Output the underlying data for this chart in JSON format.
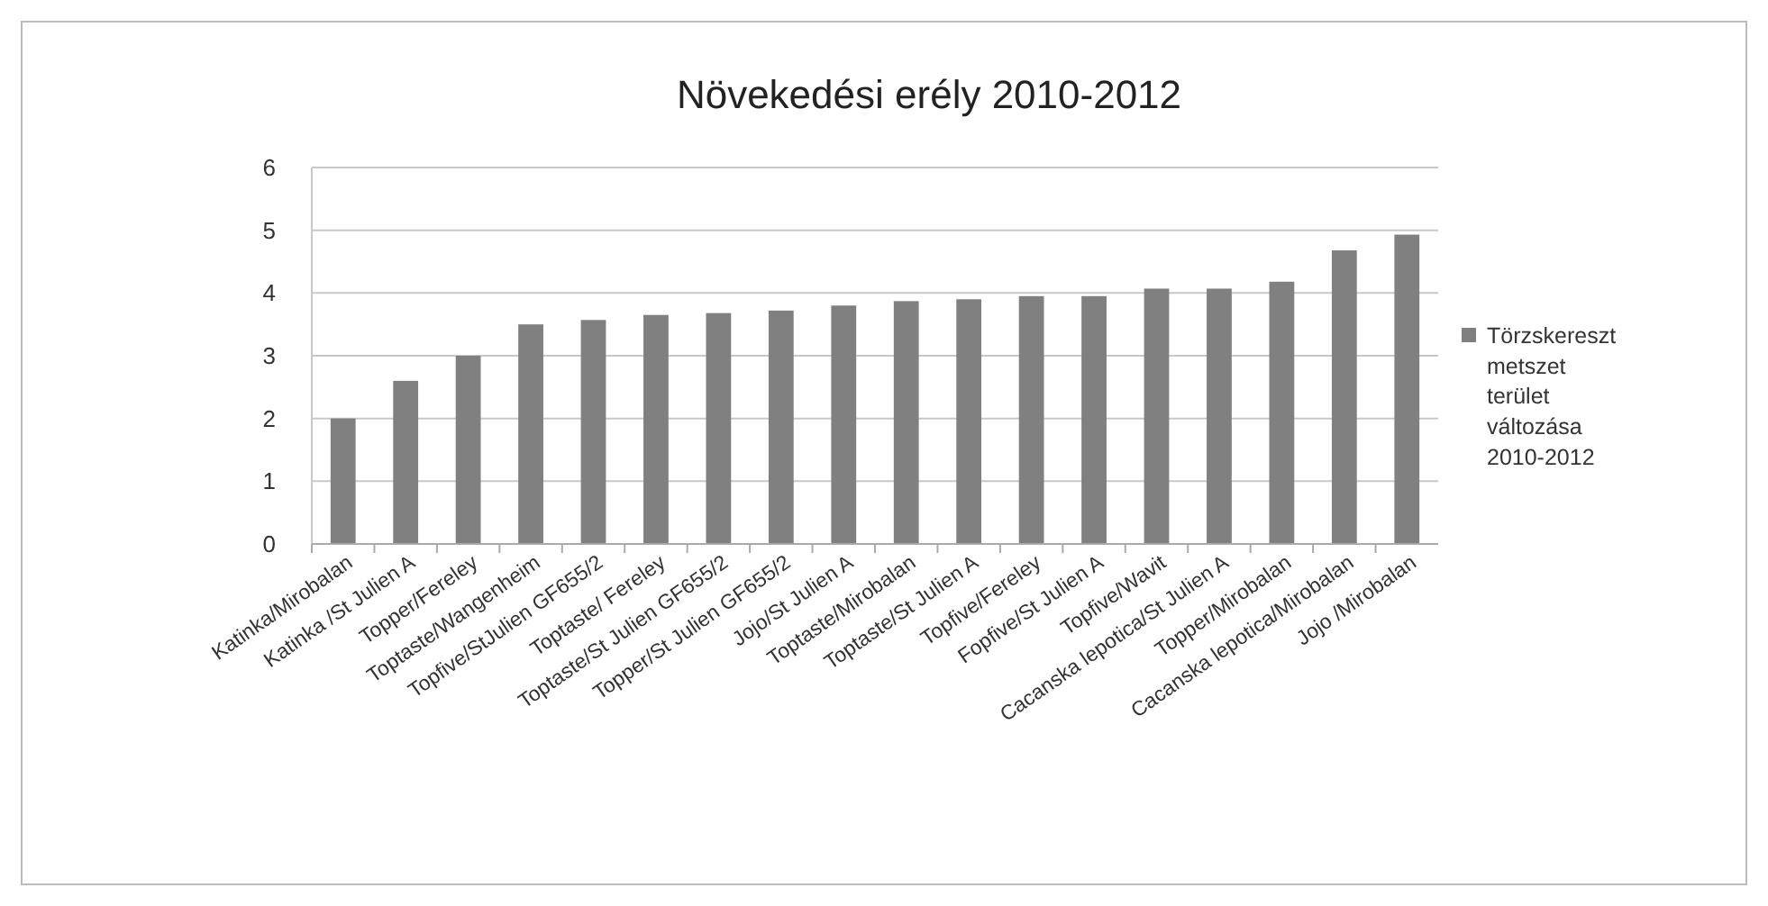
{
  "chart_data": {
    "type": "bar",
    "title": "Növekedési erély 2010-2012",
    "categories": [
      "Katinka/Mirobalan",
      "Katinka /St Julien A",
      "Topper/Fereley",
      "Toptaste/Wangenheim",
      "Topfive/StJulien GF655/2",
      "Toptaste/ Fereley",
      "Toptaste/St Julien GF655/2",
      "Topper/St Julien GF655/2",
      "Jojo/St Julien A",
      "Toptaste/Mirobalan",
      "Toptaste/St Julien A",
      "Topfive/Fereley",
      "Fopfive/St Julien A",
      "Topfive/Wavit",
      "Cacanska lepotica/St Julien A",
      "Topper/Mirobalan",
      "Cacanska lepotica/Mirobalan",
      "Jojo /Mirobalan"
    ],
    "series": [
      {
        "name": "Törzskereszt metszet terület változása 2010-2012",
        "color": "#808080",
        "values": [
          2.0,
          2.6,
          3.0,
          3.5,
          3.57,
          3.65,
          3.68,
          3.72,
          3.8,
          3.87,
          3.9,
          3.95,
          3.95,
          4.07,
          4.07,
          4.18,
          4.68,
          4.93
        ]
      }
    ],
    "ylim": [
      0,
      6
    ],
    "yticks": [
      0,
      1,
      2,
      3,
      4,
      5,
      6
    ],
    "grid": "y",
    "legend": "right"
  }
}
